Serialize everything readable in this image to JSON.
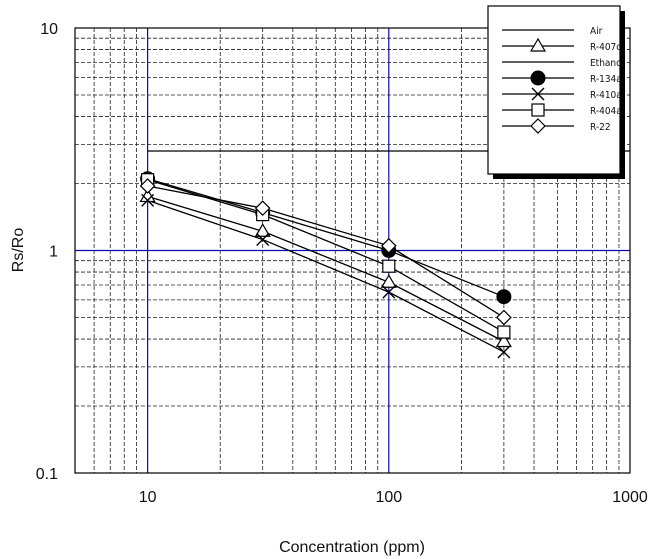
{
  "chart_data": {
    "type": "line",
    "title": "",
    "xlabel": "Concentration (ppm)",
    "ylabel": "Rs/Ro",
    "x_scale": "log",
    "y_scale": "log",
    "xlim": [
      5,
      1000
    ],
    "ylim": [
      0.1,
      10
    ],
    "x_tick_labels": [
      "10",
      "100",
      "1000"
    ],
    "y_tick_labels": [
      "10",
      "1",
      "0.1"
    ],
    "grid": true,
    "legend_position": "top-right",
    "series": [
      {
        "name": "Air",
        "marker": "none",
        "x": [
          10,
          1000
        ],
        "y": [
          2.8,
          2.8
        ]
      },
      {
        "name": "R-407c",
        "marker": "triangle-open",
        "x": [
          10,
          30,
          100,
          300
        ],
        "y": [
          1.75,
          1.22,
          0.72,
          0.39
        ]
      },
      {
        "name": "Ethanol",
        "marker": "none",
        "x": [],
        "y": []
      },
      {
        "name": "R-134a",
        "marker": "circle-filled",
        "x": [
          10,
          30,
          100,
          300
        ],
        "y": [
          2.1,
          1.48,
          1.0,
          0.62
        ]
      },
      {
        "name": "R-410a",
        "marker": "x",
        "x": [
          10,
          30,
          100,
          300
        ],
        "y": [
          1.68,
          1.12,
          0.65,
          0.35
        ]
      },
      {
        "name": "R-404a",
        "marker": "square-open",
        "x": [
          10,
          30,
          100,
          300
        ],
        "y": [
          2.08,
          1.45,
          0.85,
          0.43
        ]
      },
      {
        "name": "R-22",
        "marker": "diamond-open",
        "x": [
          10,
          30,
          100,
          300
        ],
        "y": [
          1.95,
          1.55,
          1.05,
          0.5
        ]
      }
    ],
    "colors": {
      "line": "#000000",
      "major_grid": "#0a0ab0",
      "minor_grid": "#222222"
    }
  }
}
